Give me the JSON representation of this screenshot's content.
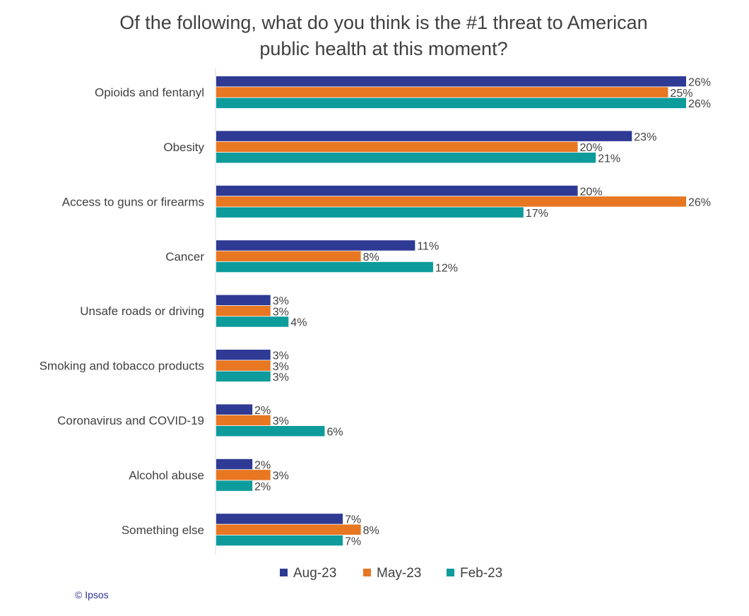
{
  "chart_data": {
    "type": "bar",
    "orientation": "horizontal",
    "title": "Of the following, what do you think is the #1 threat to American public health at this moment?",
    "title_lines": [
      "Of the following, what do you think is the #1 threat to American",
      "public health at this moment?"
    ],
    "categories": [
      "Opioids and fentanyl",
      "Obesity",
      "Access to guns or firearms",
      "Cancer",
      "Unsafe roads or driving",
      "Smoking and tobacco products",
      "Coronavirus and COVID-19",
      "Alcohol abuse",
      "Something else"
    ],
    "series": [
      {
        "name": "Aug-23",
        "color": "#2e3a93",
        "values": [
          26,
          23,
          20,
          11,
          3,
          3,
          2,
          2,
          7
        ]
      },
      {
        "name": "May-23",
        "color": "#e87722",
        "values": [
          25,
          20,
          26,
          8,
          3,
          3,
          3,
          3,
          8
        ]
      },
      {
        "name": "Feb-23",
        "color": "#0d9b9b",
        "values": [
          26,
          21,
          17,
          12,
          4,
          3,
          6,
          2,
          7
        ]
      }
    ],
    "value_suffix": "%",
    "xlim": [
      0,
      26
    ],
    "grid": false,
    "legend_position": "bottom"
  },
  "footer": {
    "copyright": "© Ipsos"
  }
}
